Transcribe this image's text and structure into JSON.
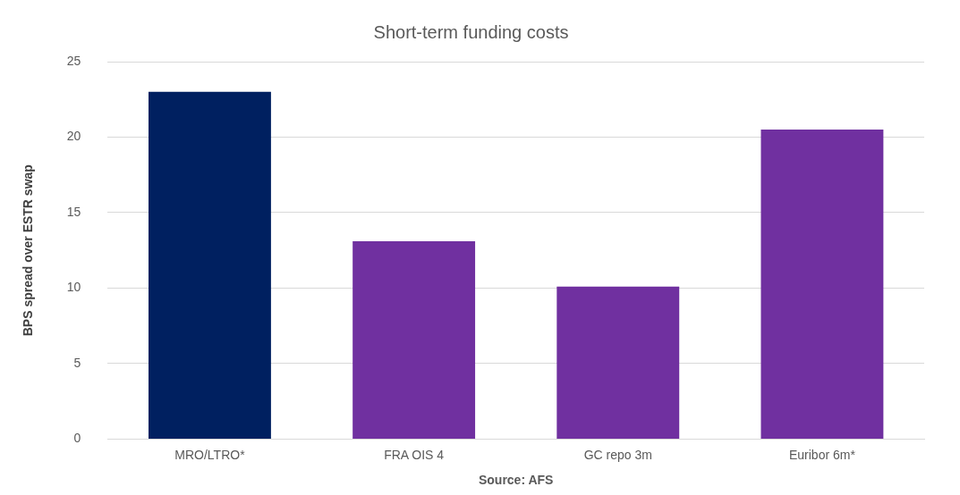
{
  "chart_data": {
    "type": "bar",
    "title": "Short-term funding costs",
    "ylabel": "BPS spread over ESTR swap",
    "xlabel": "Source: AFS",
    "categories": [
      "MRO/LTRO*",
      "FRA OIS 4",
      "GC repo 3m",
      "Euribor 6m*"
    ],
    "values": [
      23,
      13.1,
      10.1,
      20.5
    ],
    "colors": [
      "#002060",
      "#7030a0",
      "#7030a0",
      "#7030a0"
    ],
    "ylim": [
      0,
      25
    ],
    "yticks": [
      0,
      5,
      10,
      15,
      20,
      25
    ],
    "grid": "y"
  }
}
